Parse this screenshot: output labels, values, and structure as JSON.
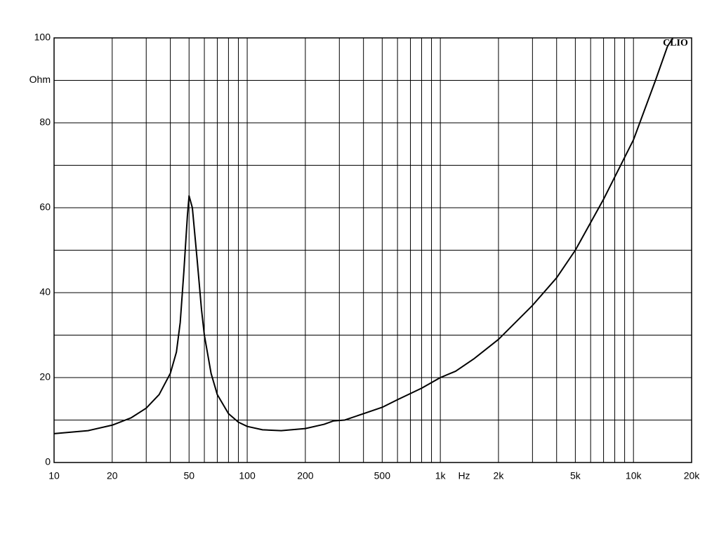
{
  "chart_data": {
    "type": "line",
    "log_x": true,
    "xlabel": "Hz",
    "ylabel": "Ohm",
    "watermark": "CLIO",
    "xlim": [
      10,
      20000
    ],
    "ylim": [
      0,
      100
    ],
    "xticks": [
      10,
      20,
      50,
      100,
      200,
      500,
      {
        "value": 1000,
        "label": "1k"
      },
      {
        "value": 2000,
        "label": "2k"
      },
      {
        "value": 5000,
        "label": "5k"
      },
      {
        "value": 10000,
        "label": "10k"
      },
      {
        "value": 20000,
        "label": "20k"
      }
    ],
    "xgrid": [
      30,
      40,
      60,
      70,
      80,
      90,
      300,
      400,
      600,
      700,
      800,
      900,
      3000,
      4000,
      6000,
      7000,
      8000,
      9000
    ],
    "yticks": [
      0,
      20,
      40,
      60,
      80,
      100
    ],
    "ygrid": [
      10,
      30,
      50,
      70,
      90
    ],
    "ylabel_at": 90,
    "grid": true,
    "series": [
      {
        "color": "#000000",
        "x": [
          10,
          15,
          20,
          25,
          30,
          35,
          40,
          43,
          45,
          47,
          49,
          50,
          52,
          55,
          58,
          60,
          65,
          70,
          80,
          90,
          100,
          120,
          150,
          200,
          250,
          280,
          320,
          400,
          500,
          600,
          800,
          1000,
          1200,
          1500,
          2000,
          3000,
          4000,
          5000,
          7000,
          10000,
          13000,
          15000,
          16000
        ],
        "values": [
          6.8,
          7.5,
          8.8,
          10.5,
          12.8,
          16,
          21,
          26,
          33,
          45,
          58,
          62.8,
          60,
          48,
          36,
          30,
          21,
          16,
          11.5,
          9.5,
          8.5,
          7.7,
          7.5,
          8,
          9,
          9.8,
          10,
          11.5,
          13,
          14.8,
          17.5,
          20,
          21.5,
          24.5,
          29,
          37,
          43.5,
          50,
          62,
          76,
          90,
          98,
          100
        ]
      }
    ]
  }
}
